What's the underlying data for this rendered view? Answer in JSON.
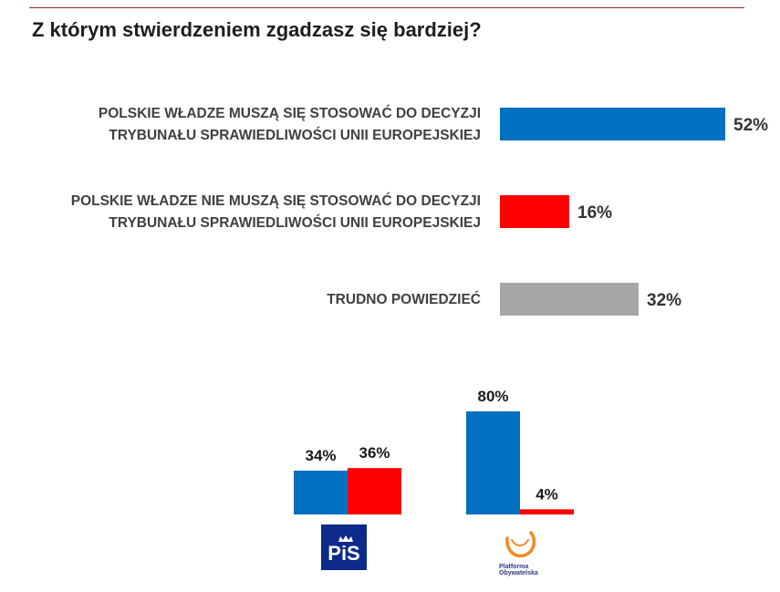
{
  "title": "Z którym stwierdzeniem zgadzasz się bardziej?",
  "colors": {
    "blue": "#0070c0",
    "red": "#ff0000",
    "gray": "#a6a6a6",
    "pis_bg": "#0d2a8a",
    "po_orange": "#f08a24"
  },
  "chart_data": [
    {
      "type": "bar",
      "orientation": "horizontal",
      "title": "Z którym stwierdzeniem zgadzasz się bardziej?",
      "xlim": [
        0,
        52
      ],
      "categories": [
        {
          "lines": [
            "POLSKIE WŁADZE MUSZĄ SIĘ STOSOWAĆ DO DECYZJI",
            "TRYBUNAŁU SPRAWIEDLIWOŚCI UNII EUROPEJSKIEJ"
          ],
          "value": 52,
          "label": "52%",
          "color": "#0070c0"
        },
        {
          "lines": [
            "POLSKIE WŁADZE NIE MUSZĄ SIĘ STOSOWAĆ DO DECYZJI",
            "TRYBUNAŁU SPRAWIEDLIWOŚCI UNII EUROPEJSKIEJ"
          ],
          "value": 16,
          "label": "16%",
          "color": "#ff0000"
        },
        {
          "lines": [
            "TRUDNO POWIEDZIEĆ"
          ],
          "value": 32,
          "label": "32%",
          "color": "#a6a6a6"
        }
      ]
    },
    {
      "type": "bar",
      "orientation": "vertical",
      "ylim": [
        0,
        80
      ],
      "groups": [
        {
          "party": "PiS",
          "logo_text": "PiS",
          "bars": [
            {
              "value": 34,
              "label": "34%",
              "color": "#0070c0"
            },
            {
              "value": 36,
              "label": "36%",
              "color": "#ff0000"
            }
          ]
        },
        {
          "party": "Platforma Obywatelska",
          "logo_lines": [
            "Platforma",
            "Obywatelska"
          ],
          "bars": [
            {
              "value": 80,
              "label": "80%",
              "color": "#0070c0"
            },
            {
              "value": 4,
              "label": "4%",
              "color": "#ff0000"
            }
          ]
        }
      ]
    }
  ]
}
